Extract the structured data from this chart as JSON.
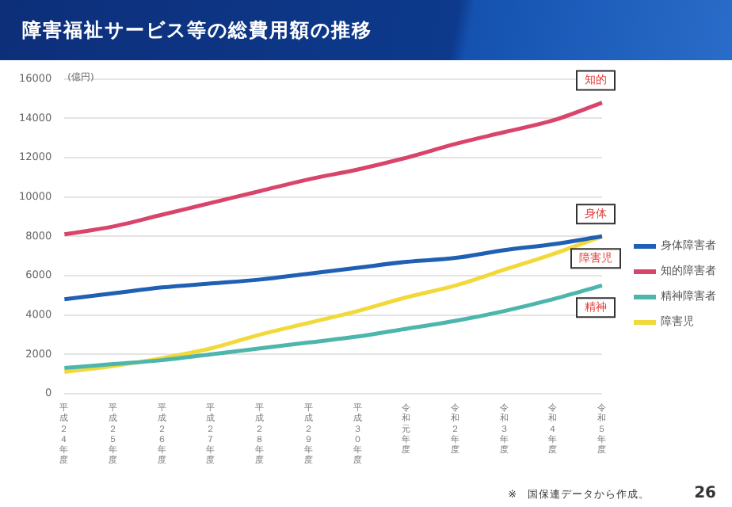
{
  "chart_data": {
    "type": "line",
    "title": "障害福祉サービス等の総費用額の推移",
    "ylabel": "(億円)",
    "categories": [
      "平成２４年度",
      "平成２５年度",
      "平成２６年度",
      "平成２７年度",
      "平成２８年度",
      "平成２９年度",
      "平成３０年度",
      "令和元年度",
      "令和２年度",
      "令和３年度",
      "令和４年度",
      "令和５年度"
    ],
    "series": [
      {
        "name": "身体障害者",
        "color": "#1f5fb4",
        "values": [
          4800,
          5100,
          5400,
          5600,
          5800,
          6100,
          6400,
          6700,
          6900,
          7300,
          7600,
          8000
        ]
      },
      {
        "name": "知的障害者",
        "color": "#d9456a",
        "values": [
          8100,
          8500,
          9100,
          9700,
          10300,
          10900,
          11400,
          12000,
          12700,
          13300,
          13900,
          14800
        ]
      },
      {
        "name": "精神障害者",
        "color": "#4db6ac",
        "values": [
          1300,
          1500,
          1700,
          2000,
          2300,
          2600,
          2900,
          3300,
          3700,
          4200,
          4800,
          5500
        ]
      },
      {
        "name": "障害児",
        "color": "#f2d93b",
        "values": [
          1100,
          1400,
          1800,
          2300,
          3000,
          3600,
          4200,
          4900,
          5500,
          6300,
          7100,
          8000
        ]
      }
    ],
    "ylim": [
      0,
      16000
    ],
    "yticks": [
      0,
      2000,
      4000,
      6000,
      8000,
      10000,
      12000,
      14000,
      16000
    ],
    "grid": "y",
    "legend": "right",
    "marker": "none",
    "line_style": "solid",
    "annotations": [
      {
        "text": "知的",
        "x": "令和５年度",
        "y": 14800
      },
      {
        "text": "身体",
        "x": "令和５年度",
        "y": 8000
      },
      {
        "text": "障害児",
        "x": "令和５年度",
        "y": 8000
      },
      {
        "text": "精神",
        "x": "令和５年度",
        "y": 5500
      },
      "※　国保連データから作成。",
      "26"
    ]
  }
}
